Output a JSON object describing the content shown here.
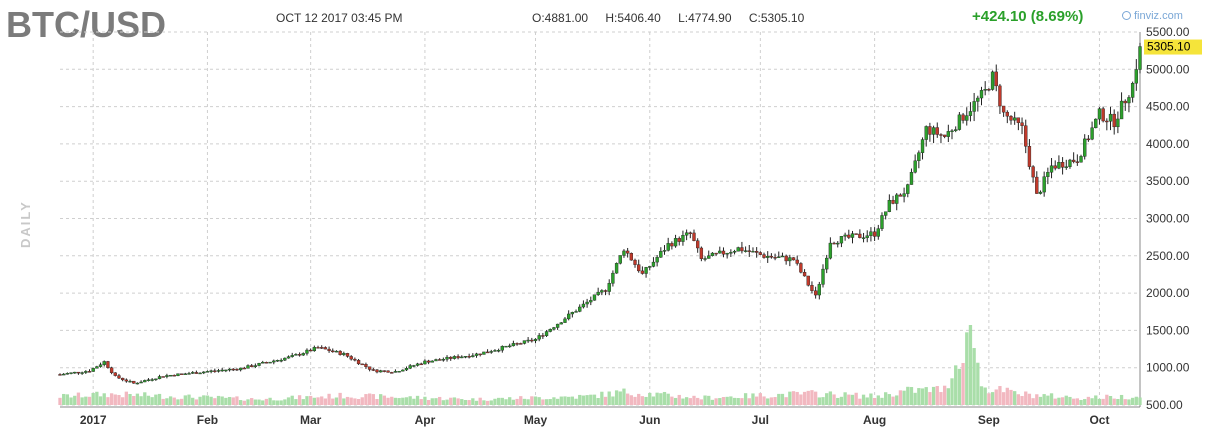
{
  "header": {
    "ticker": "BTC/USD",
    "datetime": "OCT 12 2017 03:45 PM",
    "open": "O:4881.00",
    "high": "H:5406.40",
    "low": "L:4774.90",
    "close": "C:5305.10",
    "change": "+424.10 (8.69%)",
    "watermark": "finviz.com",
    "period": "DAILY"
  },
  "colors": {
    "up": "#2ca02c",
    "down": "#c0392b",
    "vol_up": "#a9dea9",
    "vol_down": "#f2b8c0",
    "last_label_bg": "#f5e43a",
    "grid": "#cfcfcf"
  },
  "chart_data": {
    "type": "candlestick",
    "title": "BTC/USD",
    "xlabel": "",
    "ylabel": "",
    "ylim": [
      500,
      5500
    ],
    "yticks": [
      500,
      1000,
      1500,
      2000,
      2500,
      3000,
      3500,
      4000,
      4500,
      5000,
      5500
    ],
    "ytick_labels": [
      "500.00",
      "1000.00",
      "1500.00",
      "2000.00",
      "2500.00",
      "3000.00",
      "3500.00",
      "4000.00",
      "4500.00",
      "5000.00",
      "5500.00"
    ],
    "last_value_label": "5305.10",
    "grid": true,
    "x_start": "2016-12-23",
    "x_end": "2017-10-12",
    "xticks": [
      {
        "label": "2017",
        "date": "2017-01-01"
      },
      {
        "label": "Feb",
        "date": "2017-02-01"
      },
      {
        "label": "Mar",
        "date": "2017-03-01"
      },
      {
        "label": "Apr",
        "date": "2017-04-01"
      },
      {
        "label": "May",
        "date": "2017-05-01"
      },
      {
        "label": "Jun",
        "date": "2017-06-01"
      },
      {
        "label": "Jul",
        "date": "2017-07-01"
      },
      {
        "label": "Aug",
        "date": "2017-08-01"
      },
      {
        "label": "Sep",
        "date": "2017-09-01"
      },
      {
        "label": "Oct",
        "date": "2017-10-01"
      }
    ],
    "close_anchors": [
      [
        "2016-12-23",
        910
      ],
      [
        "2016-12-31",
        960
      ],
      [
        "2017-01-04",
        1080
      ],
      [
        "2017-01-07",
        880
      ],
      [
        "2017-01-12",
        790
      ],
      [
        "2017-01-20",
        890
      ],
      [
        "2017-02-01",
        950
      ],
      [
        "2017-02-10",
        990
      ],
      [
        "2017-02-24",
        1150
      ],
      [
        "2017-03-03",
        1270
      ],
      [
        "2017-03-10",
        1180
      ],
      [
        "2017-03-18",
        960
      ],
      [
        "2017-03-24",
        950
      ],
      [
        "2017-04-01",
        1080
      ],
      [
        "2017-04-15",
        1180
      ],
      [
        "2017-05-01",
        1380
      ],
      [
        "2017-05-10",
        1700
      ],
      [
        "2017-05-20",
        2050
      ],
      [
        "2017-05-25",
        2600
      ],
      [
        "2017-05-30",
        2250
      ],
      [
        "2017-06-06",
        2650
      ],
      [
        "2017-06-12",
        2800
      ],
      [
        "2017-06-15",
        2450
      ],
      [
        "2017-06-25",
        2600
      ],
      [
        "2017-07-02",
        2500
      ],
      [
        "2017-07-10",
        2450
      ],
      [
        "2017-07-16",
        1950
      ],
      [
        "2017-07-20",
        2700
      ],
      [
        "2017-08-01",
        2800
      ],
      [
        "2017-08-05",
        3200
      ],
      [
        "2017-08-10",
        3400
      ],
      [
        "2017-08-15",
        4200
      ],
      [
        "2017-08-20",
        4100
      ],
      [
        "2017-08-31",
        4700
      ],
      [
        "2017-09-02",
        4900
      ],
      [
        "2017-09-05",
        4400
      ],
      [
        "2017-09-10",
        4200
      ],
      [
        "2017-09-14",
        3300
      ],
      [
        "2017-09-18",
        3700
      ],
      [
        "2017-09-25",
        3800
      ],
      [
        "2017-10-01",
        4400
      ],
      [
        "2017-10-05",
        4300
      ],
      [
        "2017-10-10",
        4800
      ],
      [
        "2017-10-12",
        5305
      ]
    ],
    "volume_anchors": [
      [
        "2016-12-23",
        0.12
      ],
      [
        "2017-01-05",
        0.15
      ],
      [
        "2017-02-15",
        0.08
      ],
      [
        "2017-03-10",
        0.13
      ],
      [
        "2017-04-15",
        0.08
      ],
      [
        "2017-05-15",
        0.12
      ],
      [
        "2017-05-25",
        0.18
      ],
      [
        "2017-06-15",
        0.1
      ],
      [
        "2017-07-15",
        0.16
      ],
      [
        "2017-08-01",
        0.12
      ],
      [
        "2017-08-10",
        0.2
      ],
      [
        "2017-08-20",
        0.22
      ],
      [
        "2017-08-24",
        0.65
      ],
      [
        "2017-08-26",
        1.0
      ],
      [
        "2017-08-28",
        0.95
      ],
      [
        "2017-08-30",
        0.25
      ],
      [
        "2017-09-10",
        0.15
      ],
      [
        "2017-09-25",
        0.1
      ],
      [
        "2017-10-12",
        0.12
      ]
    ]
  }
}
